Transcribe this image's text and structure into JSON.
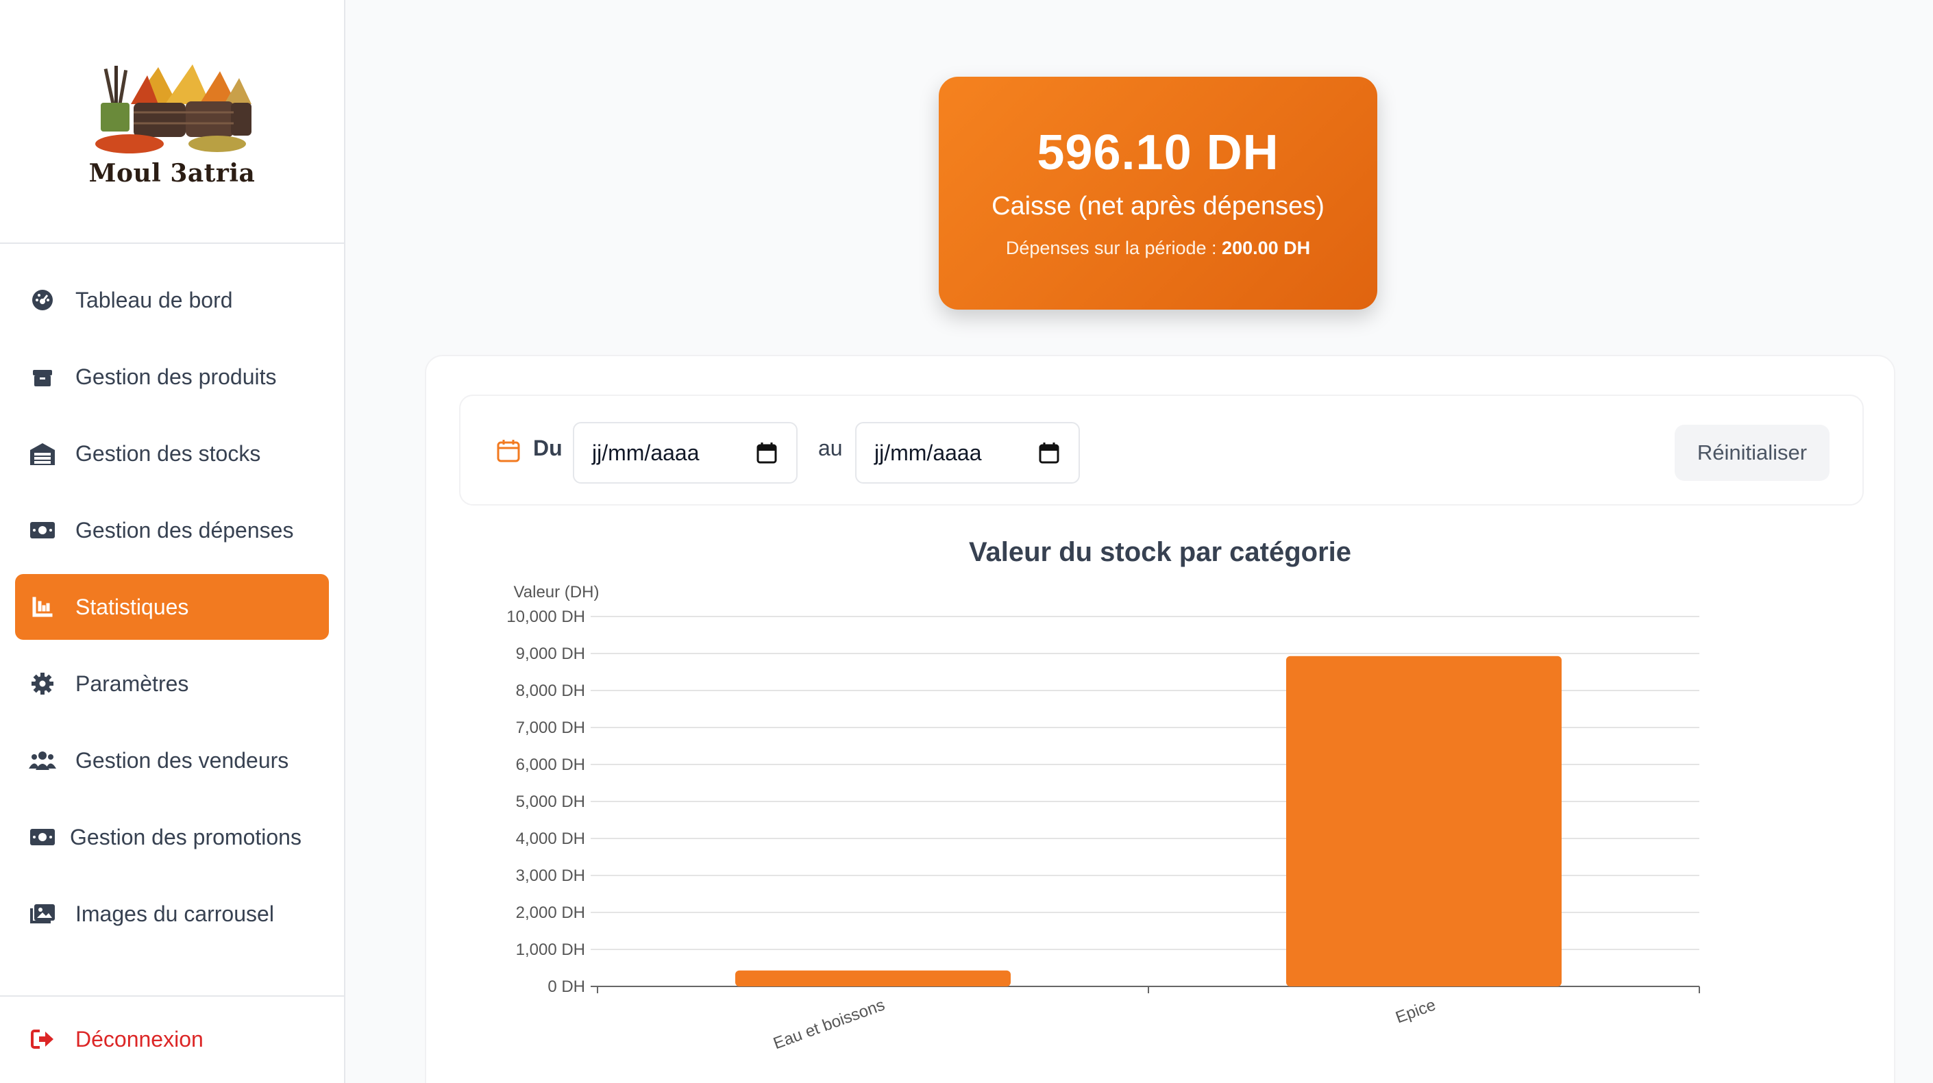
{
  "brand": {
    "name": "Moul 3atria"
  },
  "sidebar": {
    "items": [
      {
        "label": "Tableau de bord",
        "icon": "dashboard-icon"
      },
      {
        "label": "Gestion des produits",
        "icon": "box-icon"
      },
      {
        "label": "Gestion des stocks",
        "icon": "warehouse-icon"
      },
      {
        "label": "Gestion des dépenses",
        "icon": "money-bill-icon"
      },
      {
        "label": "Statistiques",
        "icon": "chart-icon",
        "active": true
      },
      {
        "label": "Paramètres",
        "icon": "gear-icon"
      },
      {
        "label": "Gestion des vendeurs",
        "icon": "users-icon"
      },
      {
        "label": "Gestion des promotions",
        "icon": "money-bill-icon"
      },
      {
        "label": "Images du carrousel",
        "icon": "images-icon"
      }
    ],
    "logout": {
      "label": "Déconnexion",
      "icon": "sign-out-icon"
    }
  },
  "caisse": {
    "amount": "596.10 DH",
    "label": "Caisse (net après dépenses)",
    "expenses_prefix": "Dépenses sur la période : ",
    "expenses_value": "200.00 DH"
  },
  "filter": {
    "from_label": "Du",
    "from_placeholder": "jj/mm/aaaa",
    "to_label": "au",
    "to_placeholder": "jj/mm/aaaa",
    "reset_label": "Réinitialiser"
  },
  "colors": {
    "accent": "#f27a20",
    "logout": "#dc2626",
    "bar": "#f27a20"
  },
  "chart_data": {
    "type": "bar",
    "title": "Valeur du stock par catégorie",
    "ylabel": "Valeur (DH)",
    "xlabel": "",
    "categories": [
      "Eau et boissons",
      "Epice"
    ],
    "values": [
      430,
      8930
    ],
    "ylim": [
      0,
      10000
    ],
    "yticks": [
      0,
      1000,
      2000,
      3000,
      4000,
      5000,
      6000,
      7000,
      8000,
      9000,
      10000
    ],
    "ytick_labels": [
      "0 DH",
      "1,000 DH",
      "2,000 DH",
      "3,000 DH",
      "4,000 DH",
      "5,000 DH",
      "6,000 DH",
      "7,000 DH",
      "8,000 DH",
      "9,000 DH",
      "10,000 DH"
    ],
    "grid": true,
    "legend": "none"
  }
}
